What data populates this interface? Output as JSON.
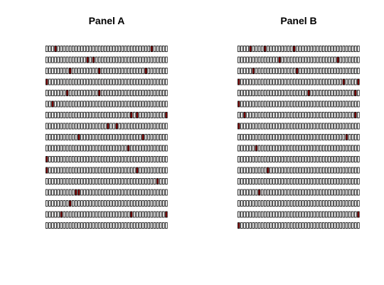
{
  "chart_data": [
    {
      "type": "heatmap",
      "title": "Panel A",
      "rows": 17,
      "cols": 42,
      "colors": {
        "off": "#ffffff",
        "on": "#8b0000",
        "border": "#000000"
      },
      "grid": [
        [
          0,
          0,
          0,
          1,
          0,
          0,
          0,
          0,
          0,
          0,
          0,
          0,
          0,
          0,
          0,
          0,
          0,
          0,
          0,
          0,
          0,
          0,
          0,
          0,
          0,
          0,
          0,
          0,
          0,
          0,
          0,
          0,
          0,
          0,
          0,
          0,
          1,
          0,
          0,
          0,
          0,
          0
        ],
        [
          0,
          0,
          0,
          0,
          0,
          0,
          0,
          0,
          0,
          0,
          0,
          0,
          0,
          0,
          1,
          0,
          1,
          0,
          0,
          0,
          0,
          0,
          0,
          0,
          0,
          0,
          0,
          0,
          0,
          0,
          0,
          0,
          0,
          0,
          0,
          0,
          0,
          0,
          0,
          0,
          0,
          0
        ],
        [
          0,
          0,
          0,
          0,
          0,
          0,
          0,
          0,
          1,
          0,
          0,
          0,
          0,
          0,
          0,
          0,
          0,
          0,
          1,
          0,
          0,
          0,
          0,
          0,
          0,
          0,
          0,
          0,
          0,
          0,
          0,
          0,
          0,
          0,
          1,
          0,
          0,
          0,
          0,
          0,
          0,
          0
        ],
        [
          1,
          0,
          0,
          0,
          0,
          0,
          0,
          0,
          0,
          0,
          0,
          0,
          0,
          0,
          0,
          0,
          0,
          0,
          0,
          0,
          0,
          0,
          0,
          0,
          0,
          0,
          0,
          0,
          0,
          0,
          0,
          0,
          0,
          0,
          0,
          0,
          0,
          0,
          0,
          0,
          0,
          0
        ],
        [
          0,
          0,
          0,
          0,
          0,
          0,
          0,
          1,
          0,
          0,
          0,
          0,
          0,
          0,
          0,
          0,
          0,
          0,
          1,
          0,
          0,
          0,
          0,
          0,
          0,
          0,
          0,
          0,
          0,
          0,
          0,
          0,
          0,
          0,
          0,
          0,
          0,
          0,
          0,
          0,
          0,
          0
        ],
        [
          0,
          0,
          1,
          0,
          0,
          0,
          0,
          0,
          0,
          0,
          0,
          0,
          0,
          0,
          0,
          0,
          0,
          0,
          0,
          0,
          0,
          0,
          0,
          0,
          0,
          0,
          0,
          0,
          0,
          0,
          0,
          0,
          0,
          0,
          0,
          0,
          0,
          0,
          0,
          0,
          0,
          0
        ],
        [
          0,
          0,
          0,
          0,
          0,
          0,
          0,
          0,
          0,
          0,
          0,
          0,
          0,
          0,
          0,
          0,
          0,
          0,
          0,
          0,
          0,
          0,
          0,
          0,
          0,
          0,
          0,
          0,
          0,
          1,
          0,
          1,
          0,
          0,
          0,
          0,
          0,
          0,
          0,
          0,
          0,
          1
        ],
        [
          0,
          0,
          0,
          0,
          0,
          0,
          0,
          0,
          0,
          0,
          0,
          0,
          0,
          0,
          0,
          0,
          0,
          0,
          0,
          0,
          0,
          1,
          0,
          0,
          1,
          0,
          0,
          0,
          0,
          0,
          0,
          0,
          0,
          0,
          0,
          0,
          0,
          0,
          0,
          0,
          0,
          0
        ],
        [
          0,
          0,
          0,
          0,
          0,
          0,
          0,
          0,
          0,
          0,
          0,
          1,
          0,
          0,
          0,
          0,
          0,
          0,
          0,
          0,
          0,
          0,
          0,
          0,
          0,
          0,
          0,
          0,
          0,
          0,
          0,
          0,
          0,
          1,
          0,
          0,
          0,
          0,
          0,
          0,
          0,
          0
        ],
        [
          0,
          0,
          0,
          0,
          0,
          0,
          0,
          0,
          0,
          0,
          0,
          0,
          0,
          0,
          0,
          0,
          0,
          0,
          0,
          0,
          0,
          0,
          0,
          0,
          0,
          0,
          0,
          0,
          1,
          0,
          0,
          0,
          0,
          0,
          0,
          0,
          0,
          0,
          0,
          0,
          0,
          0
        ],
        [
          1,
          0,
          0,
          0,
          0,
          0,
          0,
          0,
          0,
          0,
          0,
          0,
          0,
          0,
          0,
          0,
          0,
          0,
          0,
          0,
          0,
          0,
          0,
          0,
          0,
          0,
          0,
          0,
          0,
          0,
          0,
          0,
          0,
          0,
          0,
          0,
          0,
          0,
          0,
          0,
          0,
          0
        ],
        [
          1,
          0,
          0,
          0,
          0,
          0,
          0,
          0,
          0,
          0,
          0,
          0,
          0,
          0,
          0,
          0,
          0,
          0,
          0,
          0,
          0,
          0,
          0,
          0,
          0,
          0,
          0,
          0,
          0,
          0,
          0,
          1,
          0,
          0,
          0,
          0,
          0,
          0,
          0,
          0,
          0,
          0
        ],
        [
          0,
          0,
          0,
          0,
          0,
          0,
          0,
          0,
          0,
          0,
          0,
          0,
          0,
          0,
          0,
          0,
          0,
          0,
          0,
          0,
          0,
          0,
          0,
          0,
          0,
          0,
          0,
          0,
          0,
          0,
          0,
          0,
          0,
          0,
          0,
          0,
          0,
          0,
          1,
          0,
          0,
          0
        ],
        [
          0,
          0,
          0,
          0,
          0,
          0,
          0,
          0,
          0,
          0,
          1,
          1,
          0,
          0,
          0,
          0,
          0,
          0,
          0,
          0,
          0,
          0,
          0,
          0,
          0,
          0,
          0,
          0,
          0,
          0,
          0,
          0,
          0,
          0,
          0,
          0,
          0,
          0,
          0,
          0,
          0,
          0
        ],
        [
          0,
          0,
          0,
          0,
          0,
          0,
          0,
          0,
          1,
          0,
          0,
          0,
          0,
          0,
          0,
          0,
          0,
          0,
          0,
          0,
          0,
          0,
          0,
          0,
          0,
          0,
          0,
          0,
          0,
          0,
          0,
          0,
          0,
          0,
          0,
          0,
          0,
          0,
          0,
          0,
          0,
          0
        ],
        [
          0,
          0,
          0,
          0,
          0,
          1,
          0,
          0,
          0,
          0,
          0,
          0,
          0,
          0,
          0,
          0,
          0,
          0,
          0,
          0,
          0,
          0,
          0,
          0,
          0,
          0,
          0,
          0,
          0,
          1,
          0,
          0,
          0,
          0,
          0,
          0,
          0,
          0,
          0,
          0,
          0,
          1
        ],
        [
          0,
          0,
          0,
          0,
          0,
          0,
          0,
          0,
          0,
          0,
          0,
          0,
          0,
          0,
          0,
          0,
          0,
          0,
          0,
          0,
          0,
          0,
          0,
          0,
          0,
          0,
          0,
          0,
          0,
          0,
          0,
          0,
          0,
          0,
          0,
          0,
          0,
          0,
          0,
          0,
          0,
          0
        ]
      ]
    },
    {
      "type": "heatmap",
      "title": "Panel B",
      "rows": 17,
      "cols": 42,
      "colors": {
        "off": "#ffffff",
        "on": "#8b0000",
        "border": "#000000"
      },
      "grid": [
        [
          0,
          0,
          0,
          0,
          1,
          0,
          0,
          0,
          0,
          1,
          0,
          0,
          0,
          0,
          0,
          0,
          0,
          0,
          0,
          1,
          0,
          0,
          0,
          0,
          0,
          0,
          0,
          0,
          0,
          0,
          0,
          0,
          0,
          0,
          0,
          0,
          0,
          0,
          0,
          0,
          0,
          0
        ],
        [
          0,
          0,
          0,
          0,
          0,
          0,
          0,
          0,
          0,
          0,
          0,
          0,
          0,
          0,
          1,
          0,
          0,
          0,
          0,
          0,
          0,
          0,
          0,
          0,
          0,
          0,
          0,
          0,
          0,
          0,
          0,
          0,
          0,
          0,
          1,
          0,
          0,
          0,
          0,
          0,
          0,
          0
        ],
        [
          0,
          0,
          0,
          0,
          0,
          1,
          0,
          0,
          0,
          0,
          0,
          0,
          0,
          0,
          0,
          0,
          0,
          0,
          0,
          0,
          1,
          0,
          0,
          0,
          0,
          0,
          0,
          0,
          0,
          0,
          0,
          0,
          0,
          0,
          0,
          0,
          0,
          0,
          0,
          0,
          0,
          0
        ],
        [
          1,
          0,
          0,
          0,
          0,
          0,
          0,
          0,
          0,
          0,
          0,
          0,
          0,
          0,
          0,
          0,
          0,
          0,
          0,
          0,
          0,
          0,
          0,
          0,
          0,
          0,
          0,
          0,
          0,
          0,
          0,
          0,
          0,
          0,
          0,
          0,
          1,
          0,
          0,
          0,
          0,
          1
        ],
        [
          0,
          0,
          0,
          0,
          0,
          0,
          0,
          0,
          0,
          0,
          0,
          0,
          0,
          0,
          0,
          0,
          0,
          0,
          0,
          0,
          0,
          0,
          0,
          0,
          1,
          0,
          0,
          0,
          0,
          0,
          0,
          0,
          0,
          0,
          0,
          0,
          0,
          0,
          0,
          0,
          1,
          0
        ],
        [
          1,
          0,
          0,
          0,
          0,
          0,
          0,
          0,
          0,
          0,
          0,
          0,
          0,
          0,
          0,
          0,
          0,
          0,
          0,
          0,
          0,
          0,
          0,
          0,
          0,
          0,
          0,
          0,
          0,
          0,
          0,
          0,
          0,
          0,
          0,
          0,
          0,
          0,
          0,
          0,
          0,
          0
        ],
        [
          0,
          0,
          1,
          0,
          0,
          0,
          0,
          0,
          0,
          0,
          0,
          0,
          0,
          0,
          0,
          0,
          0,
          0,
          0,
          0,
          0,
          0,
          0,
          0,
          0,
          0,
          0,
          0,
          0,
          0,
          0,
          0,
          0,
          0,
          0,
          0,
          0,
          0,
          0,
          0,
          1,
          0
        ],
        [
          1,
          0,
          0,
          0,
          0,
          0,
          0,
          0,
          0,
          0,
          0,
          0,
          0,
          0,
          0,
          0,
          0,
          0,
          0,
          0,
          0,
          0,
          0,
          0,
          0,
          0,
          0,
          0,
          0,
          0,
          0,
          0,
          0,
          0,
          0,
          0,
          0,
          0,
          0,
          0,
          0,
          0
        ],
        [
          0,
          0,
          0,
          0,
          0,
          0,
          0,
          0,
          0,
          0,
          0,
          0,
          0,
          0,
          0,
          0,
          0,
          0,
          0,
          0,
          0,
          0,
          0,
          0,
          0,
          0,
          0,
          0,
          0,
          0,
          0,
          0,
          0,
          0,
          0,
          0,
          0,
          1,
          0,
          0,
          0,
          0
        ],
        [
          0,
          0,
          0,
          0,
          0,
          0,
          1,
          0,
          0,
          0,
          0,
          0,
          0,
          0,
          0,
          0,
          0,
          0,
          0,
          0,
          0,
          0,
          0,
          0,
          0,
          0,
          0,
          0,
          0,
          0,
          0,
          0,
          0,
          0,
          0,
          0,
          0,
          0,
          0,
          0,
          0,
          0
        ],
        [
          0,
          0,
          0,
          0,
          0,
          0,
          0,
          0,
          0,
          0,
          0,
          0,
          0,
          0,
          0,
          0,
          0,
          0,
          0,
          0,
          0,
          0,
          0,
          0,
          0,
          0,
          0,
          0,
          0,
          0,
          0,
          0,
          0,
          0,
          0,
          0,
          0,
          0,
          0,
          0,
          0,
          0
        ],
        [
          0,
          0,
          0,
          0,
          0,
          0,
          0,
          0,
          0,
          0,
          1,
          0,
          0,
          0,
          0,
          0,
          0,
          0,
          0,
          0,
          0,
          0,
          0,
          0,
          0,
          0,
          0,
          0,
          0,
          0,
          0,
          0,
          0,
          0,
          0,
          0,
          0,
          0,
          0,
          0,
          0,
          0
        ],
        [
          0,
          0,
          0,
          0,
          0,
          0,
          0,
          0,
          0,
          0,
          0,
          0,
          0,
          0,
          0,
          0,
          0,
          0,
          0,
          0,
          0,
          0,
          0,
          0,
          0,
          0,
          0,
          0,
          0,
          0,
          0,
          0,
          0,
          0,
          0,
          0,
          0,
          0,
          0,
          0,
          0,
          0
        ],
        [
          0,
          0,
          0,
          0,
          0,
          0,
          0,
          1,
          0,
          0,
          0,
          0,
          0,
          0,
          0,
          0,
          0,
          0,
          0,
          0,
          0,
          0,
          0,
          0,
          0,
          0,
          0,
          0,
          0,
          0,
          0,
          0,
          0,
          0,
          0,
          0,
          0,
          0,
          0,
          0,
          0,
          0
        ],
        [
          0,
          0,
          0,
          0,
          0,
          0,
          0,
          0,
          0,
          0,
          0,
          0,
          0,
          0,
          0,
          0,
          0,
          0,
          0,
          0,
          0,
          0,
          0,
          0,
          0,
          0,
          0,
          0,
          0,
          0,
          0,
          0,
          0,
          0,
          0,
          0,
          0,
          0,
          0,
          0,
          0,
          0
        ],
        [
          0,
          0,
          0,
          0,
          0,
          0,
          0,
          0,
          0,
          0,
          0,
          0,
          0,
          0,
          0,
          0,
          0,
          0,
          0,
          0,
          0,
          0,
          0,
          0,
          0,
          0,
          0,
          0,
          0,
          0,
          0,
          0,
          0,
          0,
          0,
          0,
          0,
          0,
          0,
          0,
          0,
          1
        ],
        [
          1,
          0,
          0,
          0,
          0,
          0,
          0,
          0,
          0,
          0,
          0,
          0,
          0,
          0,
          0,
          0,
          0,
          0,
          0,
          0,
          0,
          0,
          0,
          0,
          0,
          0,
          0,
          0,
          0,
          0,
          0,
          0,
          0,
          0,
          0,
          0,
          0,
          0,
          0,
          0,
          0,
          0
        ]
      ]
    }
  ]
}
